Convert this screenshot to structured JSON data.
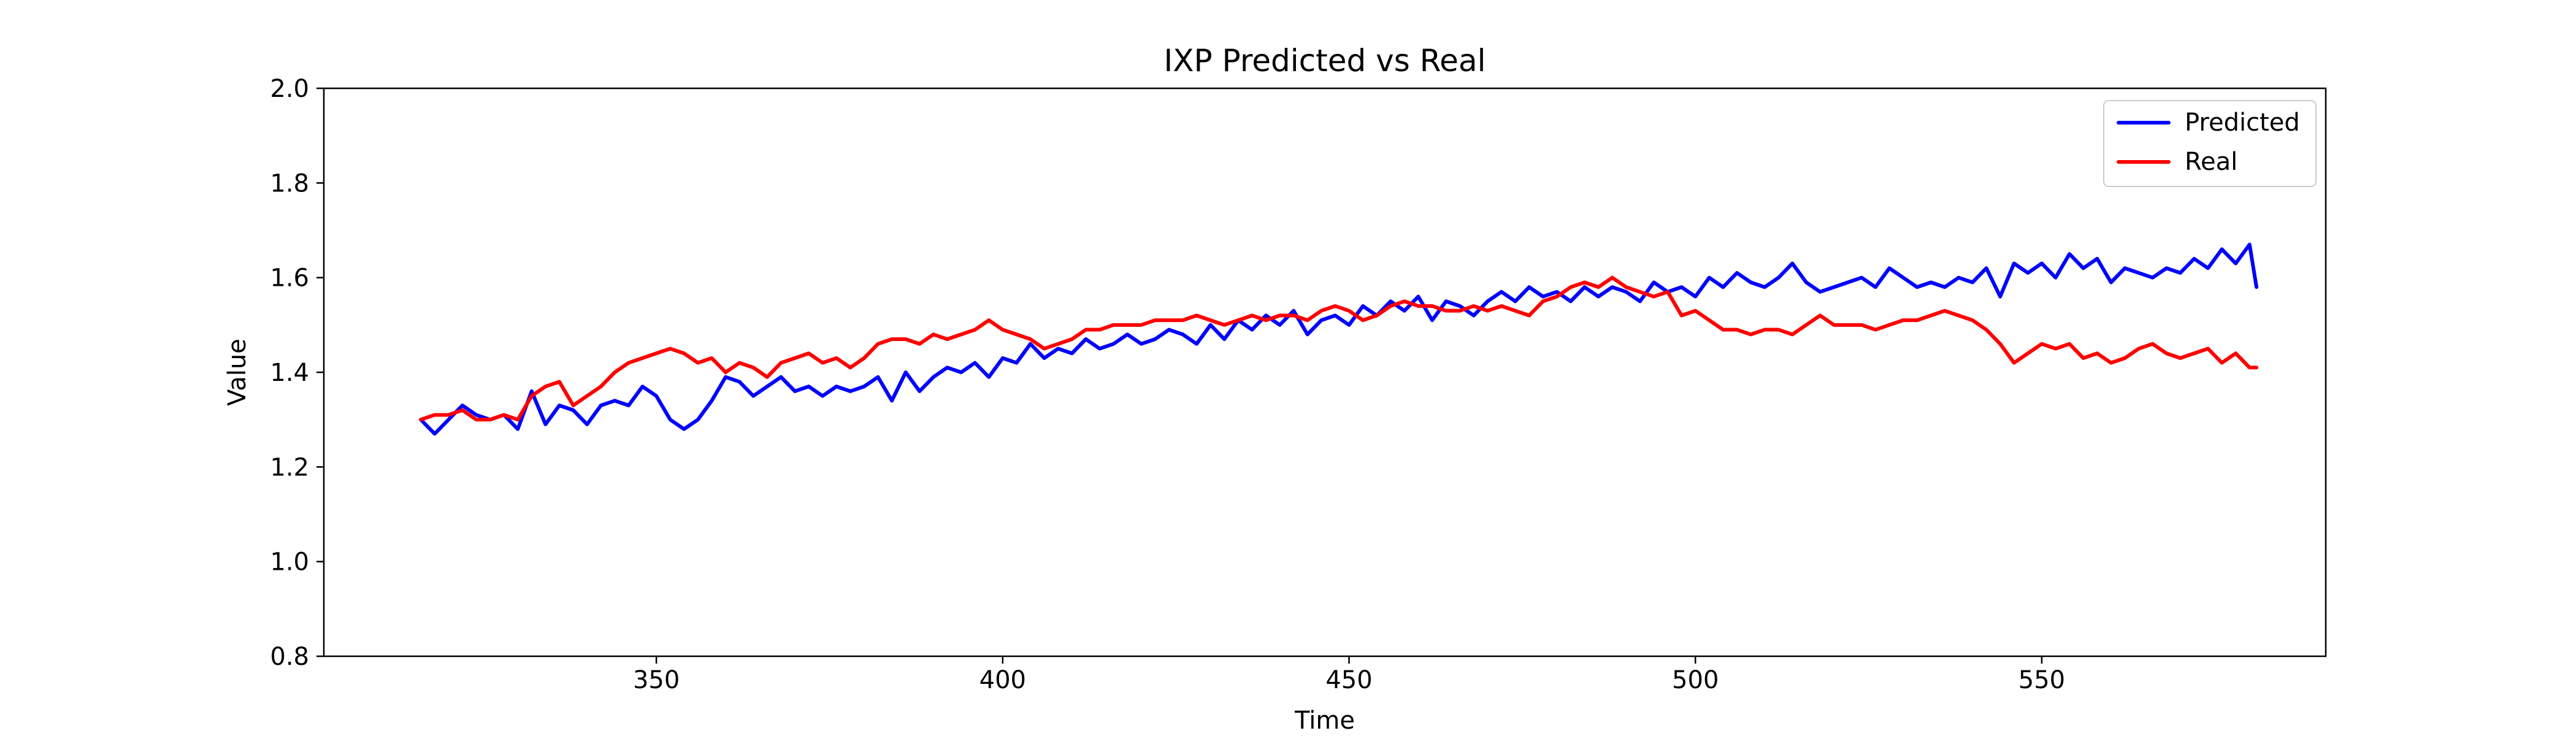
{
  "chart_data": {
    "type": "line",
    "title": "IXP Predicted vs Real",
    "xlabel": "Time",
    "ylabel": "Value",
    "xlim": [
      302,
      591
    ],
    "ylim": [
      0.8,
      2.0
    ],
    "x_ticks": [
      350,
      400,
      450,
      500,
      550
    ],
    "y_ticks": [
      0.8,
      1.0,
      1.2,
      1.4,
      1.6,
      1.8,
      2.0
    ],
    "x_tick_labels": [
      "350",
      "400",
      "450",
      "500",
      "550"
    ],
    "y_tick_labels": [
      "0.8",
      "1.0",
      "1.2",
      "1.4",
      "1.6",
      "1.8",
      "2.0"
    ],
    "legend_position": "top-right",
    "grid": false,
    "series": [
      {
        "name": "Predicted",
        "color": "#0000ff",
        "points": [
          [
            316,
            1.3
          ],
          [
            318,
            1.27
          ],
          [
            320,
            1.3
          ],
          [
            322,
            1.33
          ],
          [
            324,
            1.31
          ],
          [
            326,
            1.3
          ],
          [
            328,
            1.31
          ],
          [
            330,
            1.28
          ],
          [
            332,
            1.36
          ],
          [
            334,
            1.29
          ],
          [
            336,
            1.33
          ],
          [
            338,
            1.32
          ],
          [
            340,
            1.29
          ],
          [
            342,
            1.33
          ],
          [
            344,
            1.34
          ],
          [
            346,
            1.33
          ],
          [
            348,
            1.37
          ],
          [
            350,
            1.35
          ],
          [
            352,
            1.3
          ],
          [
            354,
            1.28
          ],
          [
            356,
            1.3
          ],
          [
            358,
            1.34
          ],
          [
            360,
            1.39
          ],
          [
            362,
            1.38
          ],
          [
            364,
            1.35
          ],
          [
            366,
            1.37
          ],
          [
            368,
            1.39
          ],
          [
            370,
            1.36
          ],
          [
            372,
            1.37
          ],
          [
            374,
            1.35
          ],
          [
            376,
            1.37
          ],
          [
            378,
            1.36
          ],
          [
            380,
            1.37
          ],
          [
            382,
            1.39
          ],
          [
            384,
            1.34
          ],
          [
            386,
            1.4
          ],
          [
            388,
            1.36
          ],
          [
            390,
            1.39
          ],
          [
            392,
            1.41
          ],
          [
            394,
            1.4
          ],
          [
            396,
            1.42
          ],
          [
            398,
            1.39
          ],
          [
            400,
            1.43
          ],
          [
            402,
            1.42
          ],
          [
            404,
            1.46
          ],
          [
            406,
            1.43
          ],
          [
            408,
            1.45
          ],
          [
            410,
            1.44
          ],
          [
            412,
            1.47
          ],
          [
            414,
            1.45
          ],
          [
            416,
            1.46
          ],
          [
            418,
            1.48
          ],
          [
            420,
            1.46
          ],
          [
            422,
            1.47
          ],
          [
            424,
            1.49
          ],
          [
            426,
            1.48
          ],
          [
            428,
            1.46
          ],
          [
            430,
            1.5
          ],
          [
            432,
            1.47
          ],
          [
            434,
            1.51
          ],
          [
            436,
            1.49
          ],
          [
            438,
            1.52
          ],
          [
            440,
            1.5
          ],
          [
            442,
            1.53
          ],
          [
            444,
            1.48
          ],
          [
            446,
            1.51
          ],
          [
            448,
            1.52
          ],
          [
            450,
            1.5
          ],
          [
            452,
            1.54
          ],
          [
            454,
            1.52
          ],
          [
            456,
            1.55
          ],
          [
            458,
            1.53
          ],
          [
            460,
            1.56
          ],
          [
            462,
            1.51
          ],
          [
            464,
            1.55
          ],
          [
            466,
            1.54
          ],
          [
            468,
            1.52
          ],
          [
            470,
            1.55
          ],
          [
            472,
            1.57
          ],
          [
            474,
            1.55
          ],
          [
            476,
            1.58
          ],
          [
            478,
            1.56
          ],
          [
            480,
            1.57
          ],
          [
            482,
            1.55
          ],
          [
            484,
            1.58
          ],
          [
            486,
            1.56
          ],
          [
            488,
            1.58
          ],
          [
            490,
            1.57
          ],
          [
            492,
            1.55
          ],
          [
            494,
            1.59
          ],
          [
            496,
            1.57
          ],
          [
            498,
            1.58
          ],
          [
            500,
            1.56
          ],
          [
            502,
            1.6
          ],
          [
            504,
            1.58
          ],
          [
            506,
            1.61
          ],
          [
            508,
            1.59
          ],
          [
            510,
            1.58
          ],
          [
            512,
            1.6
          ],
          [
            514,
            1.63
          ],
          [
            516,
            1.59
          ],
          [
            518,
            1.57
          ],
          [
            520,
            1.58
          ],
          [
            522,
            1.59
          ],
          [
            524,
            1.6
          ],
          [
            526,
            1.58
          ],
          [
            528,
            1.62
          ],
          [
            530,
            1.6
          ],
          [
            532,
            1.58
          ],
          [
            534,
            1.59
          ],
          [
            536,
            1.58
          ],
          [
            538,
            1.6
          ],
          [
            540,
            1.59
          ],
          [
            542,
            1.62
          ],
          [
            544,
            1.56
          ],
          [
            546,
            1.63
          ],
          [
            548,
            1.61
          ],
          [
            550,
            1.63
          ],
          [
            552,
            1.6
          ],
          [
            554,
            1.65
          ],
          [
            556,
            1.62
          ],
          [
            558,
            1.64
          ],
          [
            560,
            1.59
          ],
          [
            562,
            1.62
          ],
          [
            564,
            1.61
          ],
          [
            566,
            1.6
          ],
          [
            568,
            1.62
          ],
          [
            570,
            1.61
          ],
          [
            572,
            1.64
          ],
          [
            574,
            1.62
          ],
          [
            576,
            1.66
          ],
          [
            578,
            1.63
          ],
          [
            580,
            1.67
          ],
          [
            581,
            1.58
          ]
        ]
      },
      {
        "name": "Real",
        "color": "#ff0000",
        "points": [
          [
            316,
            1.3
          ],
          [
            318,
            1.31
          ],
          [
            320,
            1.31
          ],
          [
            322,
            1.32
          ],
          [
            324,
            1.3
          ],
          [
            326,
            1.3
          ],
          [
            328,
            1.31
          ],
          [
            330,
            1.3
          ],
          [
            332,
            1.35
          ],
          [
            334,
            1.37
          ],
          [
            336,
            1.38
          ],
          [
            338,
            1.33
          ],
          [
            340,
            1.35
          ],
          [
            342,
            1.37
          ],
          [
            344,
            1.4
          ],
          [
            346,
            1.42
          ],
          [
            348,
            1.43
          ],
          [
            350,
            1.44
          ],
          [
            352,
            1.45
          ],
          [
            354,
            1.44
          ],
          [
            356,
            1.42
          ],
          [
            358,
            1.43
          ],
          [
            360,
            1.4
          ],
          [
            362,
            1.42
          ],
          [
            364,
            1.41
          ],
          [
            366,
            1.39
          ],
          [
            368,
            1.42
          ],
          [
            370,
            1.43
          ],
          [
            372,
            1.44
          ],
          [
            374,
            1.42
          ],
          [
            376,
            1.43
          ],
          [
            378,
            1.41
          ],
          [
            380,
            1.43
          ],
          [
            382,
            1.46
          ],
          [
            384,
            1.47
          ],
          [
            386,
            1.47
          ],
          [
            388,
            1.46
          ],
          [
            390,
            1.48
          ],
          [
            392,
            1.47
          ],
          [
            394,
            1.48
          ],
          [
            396,
            1.49
          ],
          [
            398,
            1.51
          ],
          [
            400,
            1.49
          ],
          [
            402,
            1.48
          ],
          [
            404,
            1.47
          ],
          [
            406,
            1.45
          ],
          [
            408,
            1.46
          ],
          [
            410,
            1.47
          ],
          [
            412,
            1.49
          ],
          [
            414,
            1.49
          ],
          [
            416,
            1.5
          ],
          [
            418,
            1.5
          ],
          [
            420,
            1.5
          ],
          [
            422,
            1.51
          ],
          [
            424,
            1.51
          ],
          [
            426,
            1.51
          ],
          [
            428,
            1.52
          ],
          [
            430,
            1.51
          ],
          [
            432,
            1.5
          ],
          [
            434,
            1.51
          ],
          [
            436,
            1.52
          ],
          [
            438,
            1.51
          ],
          [
            440,
            1.52
          ],
          [
            442,
            1.52
          ],
          [
            444,
            1.51
          ],
          [
            446,
            1.53
          ],
          [
            448,
            1.54
          ],
          [
            450,
            1.53
          ],
          [
            452,
            1.51
          ],
          [
            454,
            1.52
          ],
          [
            456,
            1.54
          ],
          [
            458,
            1.55
          ],
          [
            460,
            1.54
          ],
          [
            462,
            1.54
          ],
          [
            464,
            1.53
          ],
          [
            466,
            1.53
          ],
          [
            468,
            1.54
          ],
          [
            470,
            1.53
          ],
          [
            472,
            1.54
          ],
          [
            474,
            1.53
          ],
          [
            476,
            1.52
          ],
          [
            478,
            1.55
          ],
          [
            480,
            1.56
          ],
          [
            482,
            1.58
          ],
          [
            484,
            1.59
          ],
          [
            486,
            1.58
          ],
          [
            488,
            1.6
          ],
          [
            490,
            1.58
          ],
          [
            492,
            1.57
          ],
          [
            494,
            1.56
          ],
          [
            496,
            1.57
          ],
          [
            498,
            1.52
          ],
          [
            500,
            1.53
          ],
          [
            502,
            1.51
          ],
          [
            504,
            1.49
          ],
          [
            506,
            1.49
          ],
          [
            508,
            1.48
          ],
          [
            510,
            1.49
          ],
          [
            512,
            1.49
          ],
          [
            514,
            1.48
          ],
          [
            516,
            1.5
          ],
          [
            518,
            1.52
          ],
          [
            520,
            1.5
          ],
          [
            522,
            1.5
          ],
          [
            524,
            1.5
          ],
          [
            526,
            1.49
          ],
          [
            528,
            1.5
          ],
          [
            530,
            1.51
          ],
          [
            532,
            1.51
          ],
          [
            534,
            1.52
          ],
          [
            536,
            1.53
          ],
          [
            538,
            1.52
          ],
          [
            540,
            1.51
          ],
          [
            542,
            1.49
          ],
          [
            544,
            1.46
          ],
          [
            546,
            1.42
          ],
          [
            548,
            1.44
          ],
          [
            550,
            1.46
          ],
          [
            552,
            1.45
          ],
          [
            554,
            1.46
          ],
          [
            556,
            1.43
          ],
          [
            558,
            1.44
          ],
          [
            560,
            1.42
          ],
          [
            562,
            1.43
          ],
          [
            564,
            1.45
          ],
          [
            566,
            1.46
          ],
          [
            568,
            1.44
          ],
          [
            570,
            1.43
          ],
          [
            572,
            1.44
          ],
          [
            574,
            1.45
          ],
          [
            576,
            1.42
          ],
          [
            578,
            1.44
          ],
          [
            580,
            1.41
          ],
          [
            581,
            1.41
          ]
        ]
      }
    ]
  }
}
